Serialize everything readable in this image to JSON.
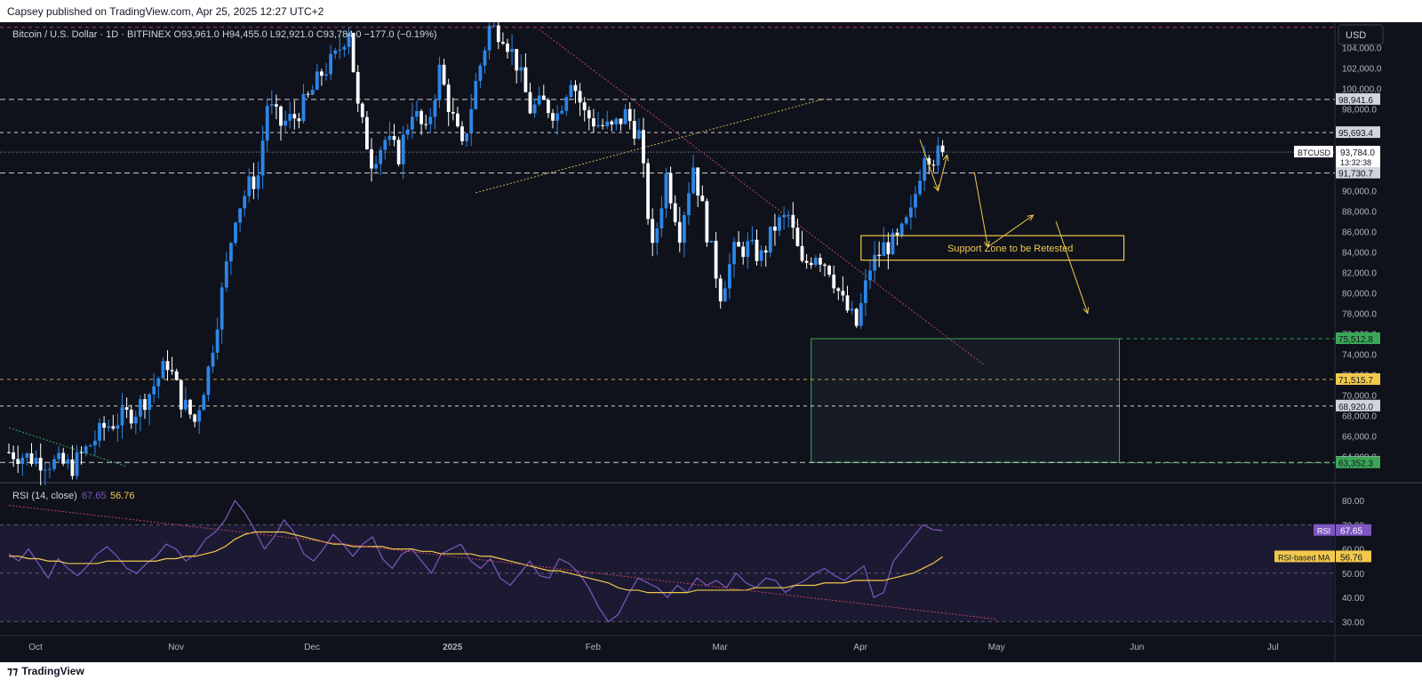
{
  "header": {
    "published_by": "Capsey published on TradingView.com, Apr 25, 2025 12:27 UTC+2"
  },
  "footer": {
    "brand": "TradingView",
    "logo_icon": "tradingview-logo-icon"
  },
  "colors": {
    "background": "#0f121b",
    "bull": "#2c86e8",
    "bear": "#ffffff",
    "rsi": "#7e57c2",
    "rsi_ma": "#f2c94c",
    "annotation": "#f2c94c",
    "support_box": "#3aa657",
    "resistance_line": "#c0425c"
  },
  "chart_data": [
    {
      "type": "candlestick",
      "title": "Bitcoin / U.S. Dollar · 1D · BITFINEX",
      "ohlc": {
        "o": "O93,961.0",
        "h": "H94,455.0",
        "l": "L92,921.0",
        "c": "C93,784.0",
        "chg": "−177.0 (−0.19%)"
      },
      "currency_button": "USD",
      "ylim": [
        61500,
        106500
      ],
      "y_ticks": [
        "104,000.0",
        "102,000.0",
        "100,000.0",
        "98,000.0",
        "90,000.0",
        "88,000.0",
        "86,000.0",
        "84,000.0",
        "82,000.0",
        "80,000.0",
        "78,000.0",
        "76,000.0",
        "74,000.0",
        "72,000.0",
        "70,000.0",
        "68,000.0",
        "66,000.0",
        "64,000.0"
      ],
      "x_ticks": [
        "Oct",
        "Nov",
        "Dec",
        "2025",
        "Feb",
        "Mar",
        "Apr",
        "May",
        "Jun",
        "Jul"
      ],
      "x_tick_pos": [
        0,
        31,
        61,
        92,
        123,
        151,
        182,
        212,
        243,
        273
      ],
      "last_day": 206,
      "close_path": [
        [
          0,
          64400
        ],
        [
          7,
          63600
        ],
        [
          14,
          63000
        ],
        [
          21,
          66800
        ],
        [
          28,
          68500
        ],
        [
          31,
          70200
        ],
        [
          35,
          73200
        ],
        [
          38,
          69500
        ],
        [
          41,
          67400
        ],
        [
          44,
          72500
        ],
        [
          47,
          80000
        ],
        [
          50,
          87800
        ],
        [
          53,
          90500
        ],
        [
          55,
          91500
        ],
        [
          57,
          98500
        ],
        [
          60,
          96500
        ],
        [
          63,
          97200
        ],
        [
          66,
          99000
        ],
        [
          69,
          101500
        ],
        [
          72,
          103000
        ],
        [
          75,
          106000
        ],
        [
          77,
          98000
        ],
        [
          80,
          93000
        ],
        [
          83,
          95000
        ],
        [
          86,
          93500
        ],
        [
          89,
          98000
        ],
        [
          92,
          95500
        ],
        [
          95,
          101800
        ],
        [
          97,
          98500
        ],
        [
          100,
          94000
        ],
        [
          103,
          100500
        ],
        [
          106,
          106000
        ],
        [
          109,
          105500
        ],
        [
          112,
          102500
        ],
        [
          115,
          98000
        ],
        [
          118,
          98500
        ],
        [
          121,
          97500
        ],
        [
          124,
          101200
        ],
        [
          127,
          97500
        ],
        [
          130,
          96500
        ],
        [
          133,
          96000
        ],
        [
          136,
          97500
        ],
        [
          139,
          95500
        ],
        [
          142,
          84000
        ],
        [
          145,
          91500
        ],
        [
          148,
          86000
        ],
        [
          151,
          92500
        ],
        [
          154,
          86000
        ],
        [
          157,
          80000
        ],
        [
          160,
          84000
        ],
        [
          163,
          84500
        ],
        [
          166,
          83500
        ],
        [
          169,
          86500
        ],
        [
          172,
          87500
        ],
        [
          175,
          82500
        ],
        [
          178,
          84000
        ],
        [
          181,
          82500
        ],
        [
          184,
          79000
        ],
        [
          187,
          76800
        ],
        [
          190,
          82500
        ],
        [
          193,
          84500
        ],
        [
          196,
          85000
        ],
        [
          199,
          87600
        ],
        [
          202,
          94000
        ],
        [
          204,
          93300
        ],
        [
          206,
          93784
        ]
      ],
      "levels": [
        {
          "label": "98,941.6",
          "value": 98941.6,
          "color": "#ffffff",
          "dash": "6,4"
        },
        {
          "label": "95,693.4",
          "value": 95693.4,
          "color": "#ffffff",
          "dash": "4,4"
        },
        {
          "label": "91,730.7",
          "value": 91730.7,
          "color": "#ffffff",
          "dash": "6,4"
        },
        {
          "label": "71,515.7",
          "value": 71515.7,
          "color": "#f2c94c",
          "dash": "4,4"
        },
        {
          "label": "68,920.0",
          "value": 68920.0,
          "color": "#ffffff",
          "dash": "4,4"
        },
        {
          "label": "63,396.7",
          "value": 63396.7,
          "color": "#ffffff",
          "dash": "6,4"
        },
        {
          "label": "",
          "value": 106000,
          "color": "#e0425c",
          "dash": "4,4"
        }
      ],
      "green_levels": [
        {
          "label": "75,512.8",
          "value": 75512.8
        },
        {
          "label": "63,352.3",
          "value": 63352.3
        }
      ],
      "price_tag": {
        "symbol": "BTCUSD",
        "price": "93,784.0",
        "countdown": "13:32:38",
        "value": 93784
      },
      "support_zone": {
        "label": "Support Zone to be Retested",
        "from_day": 188,
        "to_day": 246,
        "top": 85600,
        "bottom": 83200
      },
      "demand_zone": {
        "from_day": 177,
        "to_day": 245,
        "top": 75512.8,
        "bottom": 63396.7
      },
      "annotations": {
        "projection_path_1": [
          [
            201,
            95000
          ],
          [
            205,
            90000
          ],
          [
            207,
            93500
          ]
        ],
        "projection_path_2": [
          [
            213,
            91800
          ],
          [
            216,
            84500
          ],
          [
            226,
            87600
          ]
        ],
        "projection_path_3": [
          [
            231,
            87000
          ],
          [
            238,
            78000
          ]
        ],
        "resistance_trendline": [
          [
            117,
            105800
          ],
          [
            215,
            73000
          ]
        ],
        "rising_trendline": [
          [
            103,
            89800
          ],
          [
            180,
            99000
          ]
        ],
        "oct_trendline": [
          [
            0,
            66800
          ],
          [
            26,
            63000
          ]
        ]
      }
    },
    {
      "type": "line",
      "title": "RSI (14, close)",
      "rsi_value": "67.65",
      "ma_value": "56.76",
      "labels": {
        "rsi": "RSI",
        "ma": "RSI-based MA"
      },
      "ylim": [
        25,
        87
      ],
      "y_ticks": [
        "80.00",
        "70.00",
        "60.00",
        "50.00",
        "40.00",
        "30.00"
      ],
      "bands": [
        70,
        30
      ],
      "mid": 50,
      "series": [
        {
          "name": "RSI",
          "values": [
            58,
            55,
            60,
            54,
            48,
            56,
            52,
            49,
            53,
            58,
            61,
            57,
            52,
            50,
            54,
            57,
            62,
            60,
            55,
            58,
            64,
            67,
            72,
            80,
            75,
            68,
            60,
            65,
            72,
            67,
            58,
            55,
            60,
            66,
            62,
            57,
            62,
            65,
            56,
            52,
            58,
            60,
            55,
            50,
            58,
            60,
            62,
            55,
            52,
            56,
            48,
            45,
            50,
            55,
            49,
            48,
            56,
            54,
            50,
            44,
            36,
            30,
            33,
            41,
            48,
            46,
            44,
            40,
            45,
            42,
            48,
            45,
            47,
            44,
            50,
            46,
            44,
            48,
            47,
            42,
            45,
            47,
            50,
            52,
            49,
            47,
            50,
            53,
            40,
            42,
            55,
            60,
            65,
            70,
            68,
            67.65
          ]
        },
        {
          "name": "RSI-based MA",
          "values": [
            57,
            57,
            56,
            56,
            55,
            55,
            54,
            54,
            54,
            54,
            55,
            55,
            55,
            55,
            55,
            55,
            56,
            56,
            57,
            57,
            58,
            59,
            61,
            64,
            66,
            67,
            67,
            67,
            67,
            66,
            65,
            64,
            63,
            62,
            62,
            61,
            61,
            61,
            61,
            60,
            60,
            60,
            59,
            59,
            58,
            58,
            58,
            58,
            57,
            57,
            56,
            55,
            54,
            53,
            52,
            51,
            51,
            50,
            49,
            48,
            47,
            46,
            44,
            43,
            43,
            42,
            42,
            42,
            42,
            42,
            43,
            43,
            43,
            43,
            43,
            43,
            44,
            44,
            44,
            44,
            45,
            45,
            45,
            46,
            46,
            46,
            47,
            47,
            47,
            47,
            48,
            49,
            50,
            52,
            54,
            56.76
          ]
        }
      ],
      "resistance_trendline": [
        [
          0,
          78
        ],
        [
          100,
          31
        ]
      ]
    }
  ]
}
